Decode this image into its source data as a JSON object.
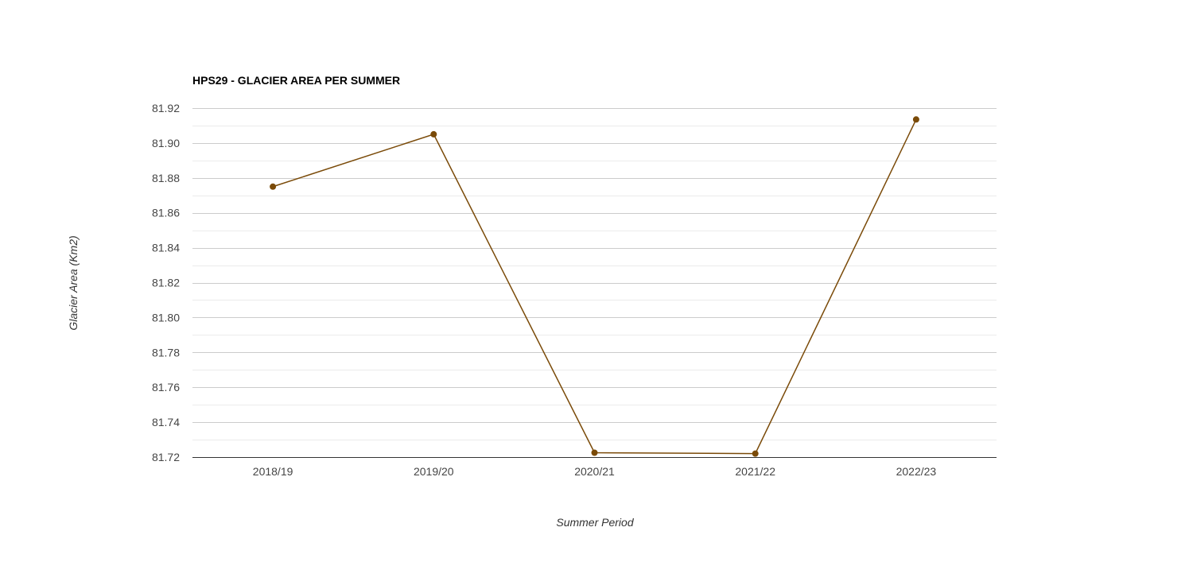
{
  "chart_data": {
    "type": "line",
    "title": "HPS29 - GLACIER AREA PER SUMMER",
    "xlabel": "Summer Period",
    "ylabel": "Glacier Area (Km2)",
    "categories": [
      "2018/19",
      "2019/20",
      "2020/21",
      "2021/22",
      "2022/23"
    ],
    "series": [
      {
        "values": [
          81.875,
          81.905,
          81.7225,
          81.722,
          81.9135
        ]
      }
    ],
    "ylim": [
      81.72,
      81.92
    ],
    "yticks": [
      "81.72",
      "81.74",
      "81.76",
      "81.78",
      "81.80",
      "81.82",
      "81.84",
      "81.86",
      "81.88",
      "81.90",
      "81.92"
    ],
    "grid": true,
    "legend": "none",
    "colors": {
      "line": "#7a4a08",
      "grid_major": "#cccccc",
      "grid_minor": "#ebebeb",
      "axis": "#333333"
    }
  }
}
